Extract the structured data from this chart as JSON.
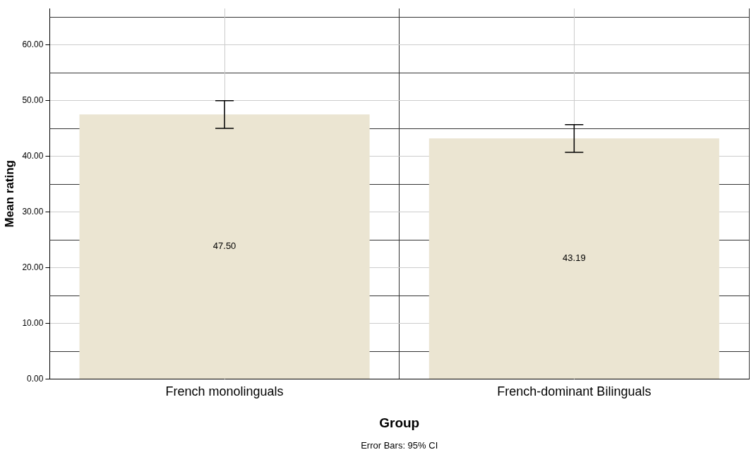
{
  "chart_data": {
    "type": "bar",
    "xlabel": "Group",
    "ylabel": "Mean rating",
    "categories": [
      "French monolinguals",
      "French-dominant Bilinguals"
    ],
    "values": [
      47.5,
      43.19
    ],
    "color": "#ebe5d2",
    "errors": [
      [
        45.0,
        49.95
      ],
      [
        40.7,
        45.65
      ]
    ],
    "value_labels": [
      "47.50",
      "43.19"
    ],
    "ylim": [
      0,
      66.5
    ],
    "yticks": [
      {
        "value": 0,
        "label": "0.00"
      },
      {
        "value": 10,
        "label": "10.00"
      },
      {
        "value": 20,
        "label": "20.00"
      },
      {
        "value": 30,
        "label": "30.00"
      },
      {
        "value": 40,
        "label": "40.00"
      },
      {
        "value": 50,
        "label": "50.00"
      },
      {
        "value": 60,
        "label": "60.00"
      }
    ],
    "grid": true,
    "annotations": [
      "Error Bars: 95% CI"
    ]
  }
}
